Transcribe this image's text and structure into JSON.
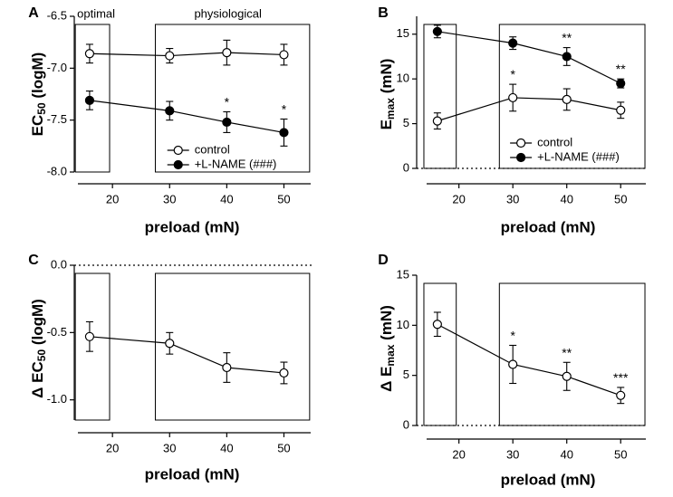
{
  "figure": {
    "panels": [
      {
        "letter": "A",
        "ylabel_main": "EC",
        "ylabel_sub": "50",
        "ylabel_tail": " (logM)",
        "ylabel_prefix": "",
        "xlabel": "preload (mN)"
      },
      {
        "letter": "B",
        "ylabel_main": "E",
        "ylabel_sub": "max",
        "ylabel_tail": " (mN)",
        "ylabel_prefix": "",
        "xlabel": "preload (mN)"
      },
      {
        "letter": "C",
        "ylabel_main": "EC",
        "ylabel_sub": "50",
        "ylabel_tail": " (logM)",
        "ylabel_prefix": "Δ ",
        "xlabel": "preload (mN)"
      },
      {
        "letter": "D",
        "ylabel_main": "E",
        "ylabel_sub": "max",
        "ylabel_tail": " (mN)",
        "ylabel_prefix": "Δ ",
        "xlabel": "preload (mN)"
      }
    ],
    "box_labels": {
      "optimal": "optimal",
      "physiological": "physiological"
    },
    "legend": {
      "control": "control",
      "lname": "+L-NAME (###)"
    }
  },
  "chart_data": [
    {
      "type": "line",
      "panel": "A",
      "title": "",
      "xlabel": "preload (mN)",
      "ylabel": "EC50 (logM)",
      "x": [
        16,
        30,
        40,
        50
      ],
      "xlim": [
        13,
        55
      ],
      "xticks": [
        20,
        30,
        40,
        50
      ],
      "ylim": [
        -8.0,
        -6.5
      ],
      "yticks": [
        -8.0,
        -7.5,
        -7.0,
        -6.5
      ],
      "ytick_labels": [
        "-8.0",
        "-7.5",
        "-7.0",
        "-6.5"
      ],
      "series": [
        {
          "name": "control",
          "marker": "open",
          "values": [
            -6.86,
            -6.88,
            -6.85,
            -6.87
          ],
          "err": [
            0.09,
            0.07,
            0.12,
            0.1
          ]
        },
        {
          "name": "+L-NAME (###)",
          "marker": "filled",
          "values": [
            -7.31,
            -7.41,
            -7.52,
            -7.62
          ],
          "err": [
            0.09,
            0.09,
            0.1,
            0.13
          ]
        }
      ],
      "annotations": [
        {
          "x": 40,
          "series": 1,
          "text": "*"
        },
        {
          "x": 50,
          "series": 1,
          "text": "*"
        }
      ],
      "boxes": [
        {
          "label": "optimal",
          "x0": 13.5,
          "x1": 19.5
        },
        {
          "label": "physiological",
          "x0": 27.5,
          "x1": 54.5
        }
      ],
      "legend_position": "lower-left inside physiological box"
    },
    {
      "type": "line",
      "panel": "B",
      "title": "",
      "xlabel": "preload (mN)",
      "ylabel": "Emax (mN)",
      "x": [
        16,
        30,
        40,
        50
      ],
      "xlim": [
        13,
        55
      ],
      "xticks": [
        20,
        30,
        40,
        50
      ],
      "ylim": [
        0,
        17
      ],
      "yticks": [
        0,
        5,
        10,
        15
      ],
      "ytick_labels": [
        "0",
        "5",
        "10",
        "15"
      ],
      "series": [
        {
          "name": "control",
          "marker": "open",
          "values": [
            5.3,
            7.9,
            7.7,
            6.5
          ],
          "err": [
            0.9,
            1.5,
            1.2,
            0.9
          ]
        },
        {
          "name": "+L-NAME (###)",
          "marker": "filled",
          "values": [
            15.3,
            14.0,
            12.5,
            9.5
          ],
          "err": [
            0.7,
            0.7,
            1.0,
            0.5
          ]
        }
      ],
      "annotations": [
        {
          "x": 30,
          "series": 0,
          "text": "*"
        },
        {
          "x": 40,
          "series": 1,
          "text": "**"
        },
        {
          "x": 50,
          "series": 1,
          "text": "**"
        }
      ],
      "boxes": [
        {
          "label": "",
          "x0": 13.5,
          "x1": 19.5
        },
        {
          "label": "",
          "x0": 27.5,
          "x1": 54.5
        }
      ],
      "legend_position": "lower-left inside physiological box",
      "zero_line": true
    },
    {
      "type": "line",
      "panel": "C",
      "title": "",
      "xlabel": "preload (mN)",
      "ylabel": "Δ EC50 (logM)",
      "x": [
        16,
        30,
        40,
        50
      ],
      "xlim": [
        13,
        55
      ],
      "xticks": [
        20,
        30,
        40,
        50
      ],
      "ylim": [
        -1.15,
        0.0
      ],
      "yticks": [
        -1.0,
        -0.5,
        0.0
      ],
      "ytick_labels": [
        "-1.0",
        "-0.5",
        "0.0"
      ],
      "series": [
        {
          "name": "control",
          "marker": "open",
          "values": [
            -0.53,
            -0.58,
            -0.76,
            -0.8
          ],
          "err": [
            0.11,
            0.08,
            0.11,
            0.08
          ]
        }
      ],
      "annotations": [],
      "boxes": [
        {
          "label": "",
          "x0": 13.5,
          "x1": 19.5
        },
        {
          "label": "",
          "x0": 27.5,
          "x1": 54.5
        }
      ],
      "zero_line": true
    },
    {
      "type": "line",
      "panel": "D",
      "title": "",
      "xlabel": "preload (mN)",
      "ylabel": "Δ Emax (mN)",
      "x": [
        16,
        30,
        40,
        50
      ],
      "xlim": [
        13,
        55
      ],
      "xticks": [
        20,
        30,
        40,
        50
      ],
      "ylim": [
        0,
        15
      ],
      "yticks": [
        0,
        5,
        10,
        15
      ],
      "ytick_labels": [
        "0",
        "5",
        "10",
        "15"
      ],
      "series": [
        {
          "name": "control",
          "marker": "open",
          "values": [
            10.1,
            6.1,
            4.9,
            3.0
          ],
          "err": [
            1.2,
            1.9,
            1.4,
            0.8
          ]
        }
      ],
      "annotations": [
        {
          "x": 30,
          "series": 0,
          "text": "*"
        },
        {
          "x": 40,
          "series": 0,
          "text": "**"
        },
        {
          "x": 50,
          "series": 0,
          "text": "***"
        }
      ],
      "boxes": [
        {
          "label": "",
          "x0": 13.5,
          "x1": 19.5
        },
        {
          "label": "",
          "x0": 27.5,
          "x1": 54.5
        }
      ],
      "zero_line": true
    }
  ]
}
